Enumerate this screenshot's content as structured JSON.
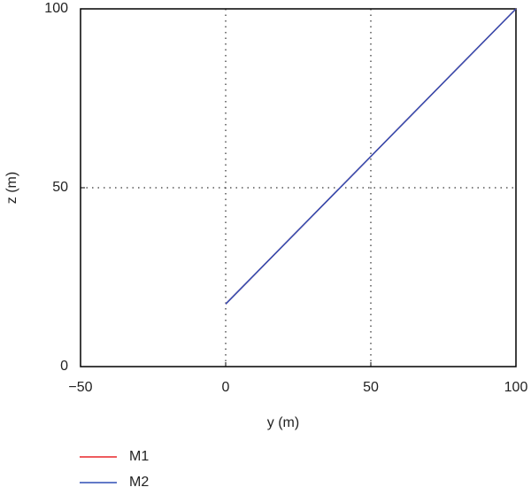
{
  "chart_data": {
    "type": "line",
    "x_label": "y (m)",
    "y_label": "z (m)",
    "x": [
      0,
      100
    ],
    "series": [
      {
        "name": "M1",
        "color": "#e8262a",
        "values": [
          17.5,
          100
        ]
      },
      {
        "name": "M2",
        "color": "#2f4fb5",
        "values": [
          17.5,
          100
        ]
      }
    ],
    "xlim": [
      -50,
      100
    ],
    "ylim": [
      0,
      100
    ],
    "xticks": [
      {
        "value": -50,
        "label": "−50"
      },
      0,
      50,
      100
    ],
    "yticks": [
      0,
      50,
      100
    ],
    "grid": true,
    "legend": "bottom-left"
  }
}
